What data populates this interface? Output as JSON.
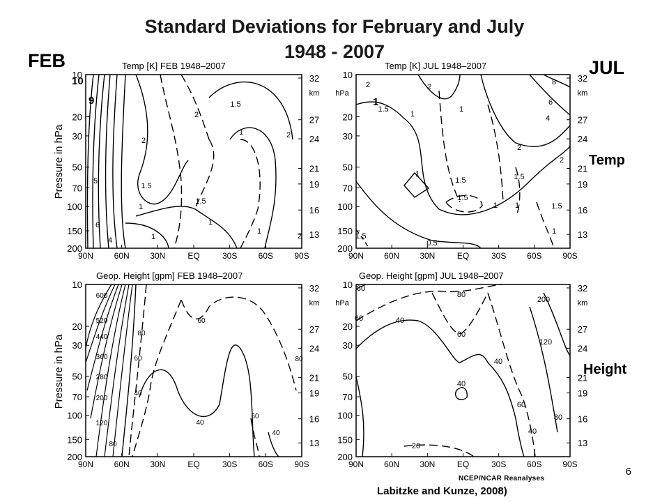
{
  "slide": {
    "title_line1": "Standard Deviations for February and July",
    "title_line2": "1948 - 2007",
    "left_label": "FEB",
    "right_label": "JUL",
    "row_label_temp": "Temp",
    "row_label_height": "Height",
    "page_number": "6",
    "credit": "Labitzke and Kunze, 2008)",
    "source_mark": "NCEP/NCAR Reanalyses",
    "overlay_10": "10",
    "overlay_9": "9",
    "overlay_1": "1"
  },
  "chart_data": [
    {
      "type": "contour",
      "title": "Temp [K] FEB 1948–2007",
      "ylabel": "Pressure in hPa",
      "x_ticks": [
        "90N",
        "60N",
        "30N",
        "EQ",
        "30S",
        "60S",
        "90S"
      ],
      "y_ticks": [
        "10",
        "20",
        "30",
        "50",
        "70",
        "100",
        "150",
        "200"
      ],
      "y2_ticks": [
        "32",
        "27",
        "24",
        "21",
        "19",
        "16",
        "13"
      ],
      "y2_unit": "km",
      "contour_labels": [
        "1",
        "1.5",
        "2",
        "1.5",
        "1",
        "1",
        "1",
        "1.5",
        "2",
        "1",
        "2",
        "1",
        "4",
        "5",
        "6",
        "2"
      ]
    },
    {
      "type": "contour",
      "title": "Temp [K] JUL 1948–2007",
      "ylabel": "",
      "x_ticks": [
        "90N",
        "60N",
        "30N",
        "EQ",
        "30S",
        "60S",
        "90S"
      ],
      "y_ticks": [
        "10",
        "20",
        "30",
        "50",
        "70",
        "100",
        "150",
        "200"
      ],
      "y2_ticks": [
        "32",
        "27",
        "24",
        "21",
        "19",
        "16",
        "13"
      ],
      "y2_unit": "km",
      "left_unit": "hPa",
      "contour_labels": [
        "2",
        "1.5",
        "1",
        "2",
        "1.5",
        "1",
        "1.5",
        "1.5",
        "1",
        "2",
        "2",
        "4",
        "6",
        "8",
        "1",
        "1.5",
        "1",
        "0.5",
        "1.5",
        "1"
      ]
    },
    {
      "type": "contour",
      "title": "Geop. Height [gpm] FEB 1948–2007",
      "ylabel": "Pressure in hPa",
      "x_ticks": [
        "90N",
        "60N",
        "30N",
        "EQ",
        "30S",
        "60S",
        "90S"
      ],
      "y_ticks": [
        "10",
        "20",
        "30",
        "50",
        "70",
        "100",
        "150",
        "200"
      ],
      "y2_ticks": [
        "32",
        "27",
        "24",
        "21",
        "19",
        "16",
        "13"
      ],
      "y2_unit": "km",
      "contour_labels": [
        "600",
        "520",
        "440",
        "360",
        "280",
        "200",
        "120",
        "80",
        "80",
        "60",
        "40",
        "60",
        "40",
        "60",
        "40",
        "80"
      ]
    },
    {
      "type": "contour",
      "title": "Geop. Height [gpm] JUL 1948–2007",
      "ylabel": "",
      "x_ticks": [
        "90N",
        "60N",
        "30N",
        "EQ",
        "30S",
        "60S",
        "90S"
      ],
      "y_ticks": [
        "10",
        "20",
        "30",
        "50",
        "70",
        "100",
        "150",
        "200"
      ],
      "y2_ticks": [
        "32",
        "27",
        "24",
        "21",
        "19",
        "16",
        "13"
      ],
      "y2_unit": "km",
      "left_unit": "hPa",
      "contour_labels": [
        "80",
        "80",
        "60",
        "40",
        "60",
        "40",
        "40",
        "200",
        "120",
        "60",
        "80",
        "40",
        "20"
      ]
    }
  ]
}
